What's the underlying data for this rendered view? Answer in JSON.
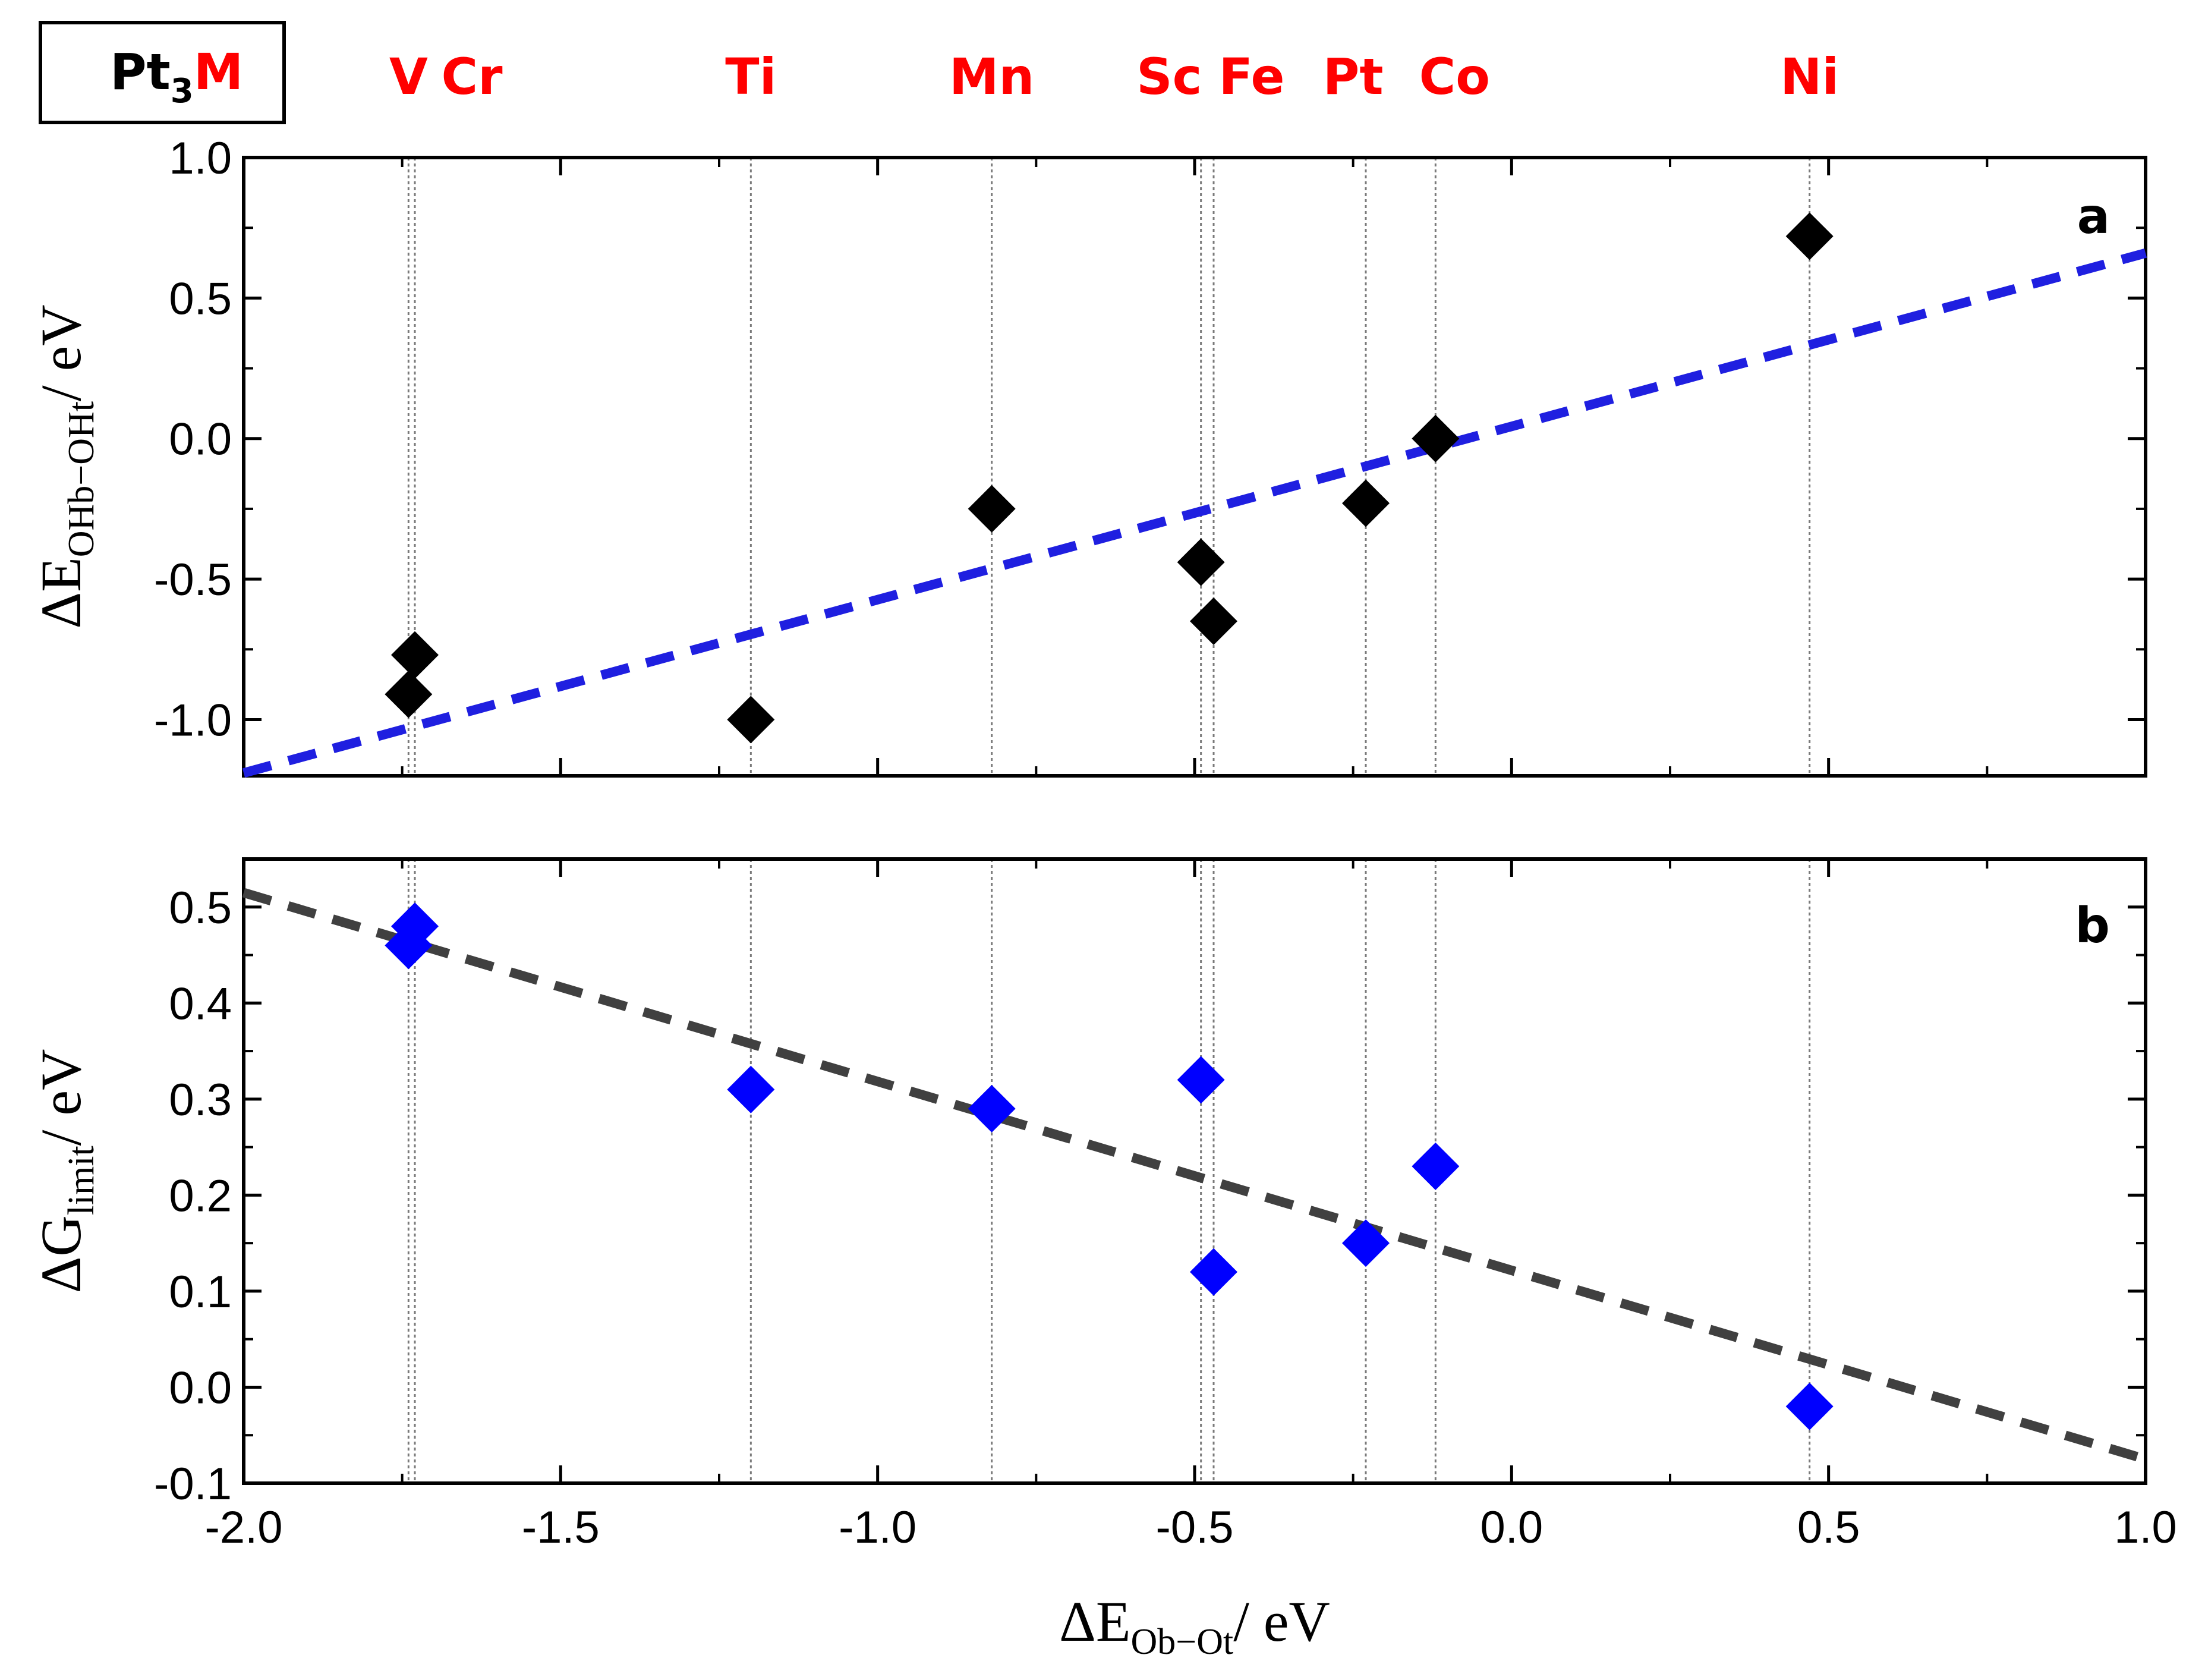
{
  "chart_data": {
    "type": "scatter",
    "key_label": {
      "base": "Pt",
      "sub": "3",
      "suffix": "M"
    },
    "metals": [
      {
        "name": "V",
        "x": -1.74
      },
      {
        "name": "Cr",
        "x": -1.73
      },
      {
        "name": "Ti",
        "x": -1.2
      },
      {
        "name": "Mn",
        "x": -0.82
      },
      {
        "name": "Sc",
        "x": -0.49
      },
      {
        "name": "Fe",
        "x": -0.47
      },
      {
        "name": "Pt",
        "x": -0.23
      },
      {
        "name": "Co",
        "x": -0.12
      },
      {
        "name": "Ni",
        "x": 0.47
      }
    ],
    "metal_label_layout": [
      {
        "text": "V",
        "x": -1.74
      },
      {
        "text": "Cr",
        "x": -1.64
      },
      {
        "text": "Ti",
        "x": -1.2
      },
      {
        "text": "Mn",
        "x": -0.82
      },
      {
        "text": "Sc",
        "x": -0.54
      },
      {
        "text": "Fe",
        "x": -0.41
      },
      {
        "text": "Pt",
        "x": -0.25
      },
      {
        "text": "Co",
        "x": -0.09
      },
      {
        "text": "Ni",
        "x": 0.47
      }
    ],
    "xaxis": {
      "label_main": "ΔE",
      "label_sub": "Ob−Ot",
      "label_unit": "/ eV",
      "range": [
        -2.0,
        1.0
      ],
      "ticks": [
        "-2.0",
        "-1.5",
        "-1.0",
        "-0.5",
        "0.0",
        "0.5",
        "1.0"
      ]
    },
    "panels": [
      {
        "tag": "a",
        "ylabel_main": "ΔE",
        "ylabel_sub": "OHb−OHt",
        "ylabel_unit": "/ eV",
        "ylim": [
          -1.2,
          1.0
        ],
        "yticks": [
          "1.0",
          "0.5",
          "0.0",
          "-0.5",
          "-1.0"
        ],
        "marker_color": "#000000",
        "points": [
          {
            "metal": "V",
            "x": -1.74,
            "y": -0.91
          },
          {
            "metal": "Cr",
            "x": -1.73,
            "y": -0.77
          },
          {
            "metal": "Ti",
            "x": -1.2,
            "y": -1.0
          },
          {
            "metal": "Mn",
            "x": -0.82,
            "y": -0.25
          },
          {
            "metal": "Sc",
            "x": -0.49,
            "y": -0.44
          },
          {
            "metal": "Fe",
            "x": -0.47,
            "y": -0.65
          },
          {
            "metal": "Pt",
            "x": -0.23,
            "y": -0.23
          },
          {
            "metal": "Co",
            "x": -0.12,
            "y": 0.0
          },
          {
            "metal": "Ni",
            "x": 0.47,
            "y": 0.72
          }
        ],
        "fit": {
          "x": [
            -2.0,
            1.0
          ],
          "y": [
            -1.19,
            0.66
          ],
          "color": "#1f1fe0"
        }
      },
      {
        "tag": "b",
        "ylabel_main": "ΔG",
        "ylabel_sub": "limit",
        "ylabel_unit": "/ eV",
        "ylim": [
          -0.1,
          0.55
        ],
        "yticks": [
          "0.5",
          "0.4",
          "0.3",
          "0.2",
          "0.1",
          "0.0",
          "-0.1"
        ],
        "marker_color": "#0000ff",
        "points": [
          {
            "metal": "V",
            "x": -1.74,
            "y": 0.46
          },
          {
            "metal": "Cr",
            "x": -1.73,
            "y": 0.48
          },
          {
            "metal": "Ti",
            "x": -1.2,
            "y": 0.31
          },
          {
            "metal": "Mn",
            "x": -0.82,
            "y": 0.29
          },
          {
            "metal": "Sc",
            "x": -0.49,
            "y": 0.32
          },
          {
            "metal": "Fe",
            "x": -0.47,
            "y": 0.12
          },
          {
            "metal": "Pt",
            "x": -0.23,
            "y": 0.15
          },
          {
            "metal": "Co",
            "x": -0.12,
            "y": 0.23
          },
          {
            "metal": "Ni",
            "x": 0.47,
            "y": -0.02
          }
        ],
        "fit": {
          "x": [
            -2.0,
            1.0
          ],
          "y": [
            0.515,
            -0.075
          ],
          "color": "#404040"
        }
      }
    ]
  }
}
